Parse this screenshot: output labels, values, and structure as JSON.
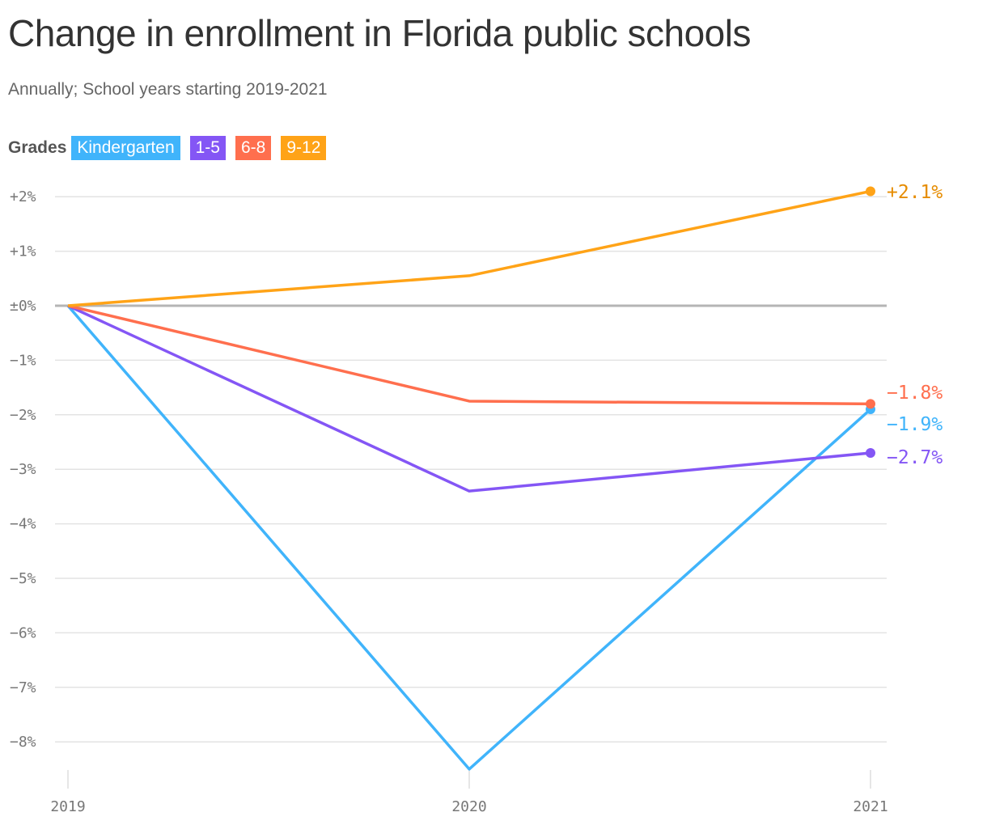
{
  "title": "Change in enrollment in Florida public schools",
  "subtitle": "Annually; School years starting 2019-2021",
  "legend_title": "Grades",
  "chart_data": {
    "type": "line",
    "title": "Change in enrollment in Florida public schools",
    "subtitle": "Annually; School years starting 2019-2021",
    "x": [
      "2019",
      "2020",
      "2021"
    ],
    "ylim": [
      -8.8,
      2.3
    ],
    "y_ticks": [
      2,
      1,
      0,
      -1,
      -2,
      -3,
      -4,
      -5,
      -6,
      -7,
      -8
    ],
    "y_tick_labels": [
      "+2%",
      "+1%",
      "±0%",
      "−1%",
      "−2%",
      "−3%",
      "−4%",
      "−5%",
      "−6%",
      "−7%",
      "−8%"
    ],
    "grid": true,
    "legend": "top-left",
    "series": [
      {
        "name": "Kindergarten",
        "color": "#40b4fb",
        "values": [
          0,
          -8.5,
          -1.9
        ],
        "end_label": "−1.9%",
        "label_color": "#40b4fb"
      },
      {
        "name": "1-5",
        "color": "#8456f5",
        "values": [
          0,
          -3.4,
          -2.7
        ],
        "end_label": "−2.7%",
        "label_color": "#8456f5"
      },
      {
        "name": "6-8",
        "color": "#ff6f4e",
        "values": [
          0,
          -1.75,
          -1.8
        ],
        "end_label": "−1.8%",
        "label_color": "#ff6f4e"
      },
      {
        "name": "9-12",
        "color": "#ffa317",
        "values": [
          0,
          0.55,
          2.1
        ],
        "end_label": "+2.1%",
        "label_color": "#e68c00"
      }
    ]
  }
}
